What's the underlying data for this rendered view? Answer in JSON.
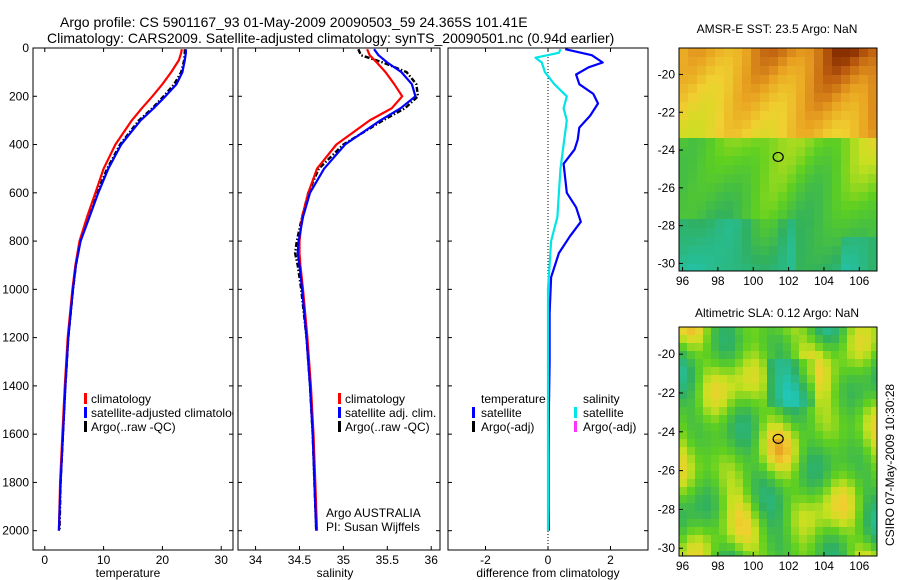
{
  "header": {
    "line1": "Argo profile: CS 5901167_93 01-May-2009 20090503_59 24.365S 101.41E",
    "line2": "Climatology: CARS2009. Satellite-adjusted climatology: synTS_20090501.nc (0.94d earlier)"
  },
  "side_stamp": "CSIRO 07-May-2009 10:30:28",
  "chart_data": [
    {
      "type": "line",
      "id": "temperature",
      "xlabel": "temperature",
      "ylabel": "",
      "xlim": [
        -2,
        32
      ],
      "ylim": [
        2080,
        0
      ],
      "x_ticks": [
        0,
        10,
        20,
        30
      ],
      "y_ticks": [
        0,
        200,
        400,
        600,
        800,
        1000,
        1200,
        1400,
        1600,
        1800,
        2000
      ],
      "legend": [
        "climatology",
        "satellite-adjusted climatolog",
        "Argo(..raw -QC)"
      ],
      "colors": {
        "climatology": "#ff0000",
        "satellite": "#0000ff",
        "argo": "#000000"
      },
      "series": [
        {
          "key": "argo",
          "depth": [
            5,
            20,
            50,
            100,
            150,
            200,
            250,
            300,
            400,
            500,
            600,
            700,
            800,
            900,
            1000,
            1200,
            1400,
            1600,
            1800,
            2000
          ],
          "values": [
            23.8,
            23.8,
            23.7,
            23.2,
            22.0,
            20.2,
            18.3,
            16.0,
            12.8,
            10.6,
            8.9,
            7.4,
            6.0,
            5.3,
            4.8,
            4.0,
            3.5,
            3.1,
            2.7,
            2.5
          ]
        },
        {
          "key": "climatology",
          "depth": [
            5,
            20,
            50,
            100,
            150,
            200,
            250,
            300,
            400,
            500,
            600,
            700,
            800,
            900,
            1000,
            1200,
            1400,
            1600,
            1800,
            2000
          ],
          "values": [
            23.3,
            23.2,
            22.8,
            21.5,
            20.0,
            18.3,
            16.5,
            14.8,
            12.0,
            10.0,
            8.6,
            7.2,
            5.9,
            5.2,
            4.7,
            3.9,
            3.4,
            3.0,
            2.6,
            2.4
          ]
        },
        {
          "key": "satellite",
          "depth": [
            5,
            20,
            50,
            100,
            150,
            200,
            250,
            300,
            400,
            500,
            600,
            700,
            800,
            900,
            1000,
            1200,
            1400,
            1600,
            1800,
            2000
          ],
          "values": [
            24.0,
            24.0,
            23.8,
            23.4,
            22.4,
            20.5,
            18.5,
            16.3,
            13.0,
            10.8,
            9.1,
            7.6,
            6.1,
            5.3,
            4.8,
            4.0,
            3.5,
            3.1,
            2.7,
            2.4
          ]
        }
      ]
    },
    {
      "type": "line",
      "id": "salinity",
      "xlabel": "salinity",
      "ylabel": "",
      "xlim": [
        33.8,
        36.1
      ],
      "ylim": [
        2080,
        0
      ],
      "x_ticks": [
        34,
        34.5,
        35,
        35.5,
        36
      ],
      "legend": [
        "climatology",
        "satellite adj. clim.",
        "Argo(..raw -QC)"
      ],
      "annotation": [
        "Argo AUSTRALIA",
        "PI: Susan Wijffels"
      ],
      "series": [
        {
          "key": "argo",
          "depth": [
            5,
            30,
            60,
            100,
            150,
            200,
            250,
            300,
            400,
            500,
            600,
            700,
            800,
            850,
            900,
            1000,
            1200,
            1400,
            1600,
            1800,
            2000
          ],
          "values": [
            35.17,
            35.2,
            35.45,
            35.72,
            35.83,
            35.85,
            35.7,
            35.45,
            35.0,
            34.72,
            34.6,
            34.53,
            34.47,
            34.45,
            34.48,
            34.52,
            34.58,
            34.62,
            34.65,
            34.67,
            34.69
          ]
        },
        {
          "key": "climatology",
          "depth": [
            5,
            30,
            60,
            100,
            150,
            200,
            250,
            300,
            400,
            500,
            600,
            700,
            800,
            850,
            900,
            1000,
            1200,
            1400,
            1600,
            1800,
            2000
          ],
          "values": [
            35.27,
            35.3,
            35.38,
            35.48,
            35.58,
            35.67,
            35.55,
            35.3,
            34.92,
            34.7,
            34.6,
            34.53,
            34.5,
            34.5,
            34.51,
            34.54,
            34.59,
            34.63,
            34.66,
            34.68,
            34.7
          ]
        },
        {
          "key": "satellite",
          "depth": [
            5,
            30,
            60,
            100,
            150,
            200,
            250,
            300,
            400,
            500,
            600,
            700,
            800,
            850,
            900,
            1000,
            1200,
            1400,
            1600,
            1800,
            2000
          ],
          "values": [
            35.35,
            35.4,
            35.5,
            35.66,
            35.78,
            35.82,
            35.65,
            35.42,
            35.02,
            34.78,
            34.62,
            34.54,
            34.49,
            34.48,
            34.5,
            34.53,
            34.58,
            34.62,
            34.65,
            34.67,
            34.69
          ]
        }
      ]
    },
    {
      "type": "line",
      "id": "difference",
      "xlabel": "difference from climatology",
      "ylabel": "",
      "xlim": [
        -3.2,
        3.2
      ],
      "ylim": [
        2080,
        0
      ],
      "x_ticks": [
        -2,
        0,
        2
      ],
      "legend_temperature_title": "temperature",
      "legend_salinity_title": "salinity",
      "legend": {
        "temp_sat": "satellite",
        "temp_argo": "Argo(-adj)",
        "sal_sat": "satellite",
        "sal_argo": "Argo(-adj)"
      },
      "colors": {
        "temp_sat": "#0000ff",
        "temp_argo": "#000000",
        "sal_sat": "#00e5e5",
        "sal_argo": "#ff33ff"
      },
      "series": [
        {
          "key": "temp_sat",
          "depth": [
            5,
            30,
            60,
            80,
            110,
            150,
            190,
            230,
            280,
            330,
            380,
            420,
            480,
            540,
            600,
            660,
            720,
            780,
            850,
            950,
            1100,
            1300,
            1500,
            1700,
            1900,
            2000
          ],
          "values": [
            0.55,
            1.4,
            1.75,
            1.3,
            0.9,
            1.0,
            1.45,
            1.6,
            1.35,
            1.0,
            0.95,
            0.85,
            0.5,
            0.55,
            0.6,
            0.9,
            1.05,
            0.7,
            0.35,
            0.1,
            0.05,
            0.05,
            0.03,
            0.02,
            0.02,
            0.03
          ]
        },
        {
          "key": "sal_sat",
          "depth": [
            5,
            20,
            40,
            60,
            100,
            150,
            200,
            250,
            300,
            400,
            500,
            600,
            700,
            800,
            900,
            1000,
            1200,
            1400,
            1600,
            1800,
            2000
          ],
          "values": [
            0.4,
            0.35,
            -0.4,
            -0.2,
            -0.1,
            0.2,
            0.6,
            0.5,
            0.6,
            0.5,
            0.4,
            0.35,
            0.3,
            0.1,
            0.05,
            0.0,
            0.0,
            0.0,
            0.0,
            0.0,
            0.0
          ]
        }
      ]
    },
    {
      "type": "heatmap",
      "id": "sst_map",
      "title": "AMSR-E SST: 23.5 Argo: NaN",
      "xlim": [
        95.8,
        107
      ],
      "ylim": [
        -30.4,
        -18.6
      ],
      "x_ticks": [
        96,
        98,
        100,
        102,
        104,
        106
      ],
      "y_ticks": [
        -20,
        -22,
        -24,
        -26,
        -28,
        -30
      ],
      "marker": [
        101.41,
        -24.365
      ]
    },
    {
      "type": "heatmap",
      "id": "sla_map",
      "title": "Altimetric SLA: 0.12 Argo: NaN",
      "xlim": [
        95.8,
        107
      ],
      "ylim": [
        -30.4,
        -18.6
      ],
      "x_ticks": [
        96,
        98,
        100,
        102,
        104,
        106
      ],
      "y_ticks": [
        -20,
        -22,
        -24,
        -26,
        -28,
        -30
      ],
      "marker": [
        101.41,
        -24.365
      ]
    }
  ]
}
